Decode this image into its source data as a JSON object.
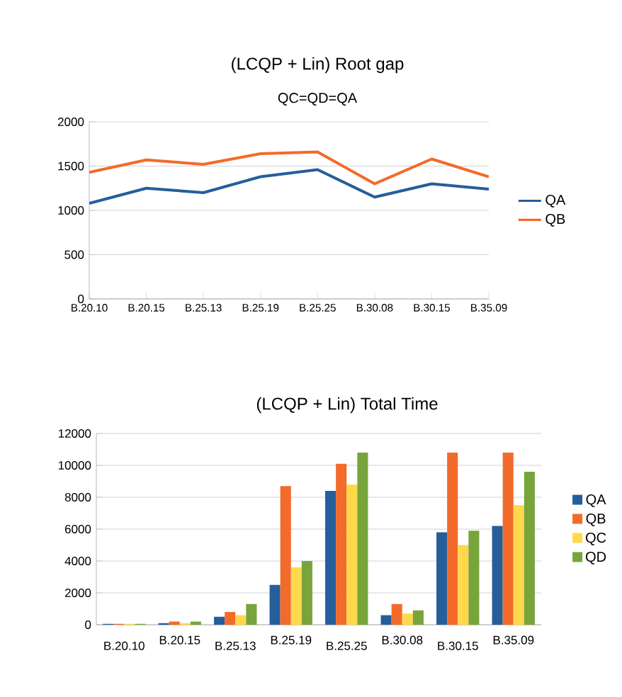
{
  "chart_data": [
    {
      "type": "line",
      "title": "(LCQP + Lin) Root gap",
      "subtitle": "QC=QD=QA",
      "categories": [
        "B.20.10",
        "B.20.15",
        "B.25.13",
        "B.25.19",
        "B.25.25",
        "B.30.08",
        "B.30.15",
        "B.35.09"
      ],
      "series": [
        {
          "name": "QA",
          "color": "#255e9b",
          "values": [
            1080,
            1250,
            1200,
            1380,
            1460,
            1150,
            1300,
            1240
          ]
        },
        {
          "name": "QB",
          "color": "#f26b2a",
          "values": [
            1430,
            1570,
            1520,
            1640,
            1660,
            1300,
            1580,
            1380
          ]
        }
      ],
      "ylim": [
        0,
        2000
      ],
      "yticks": [
        0,
        500,
        1000,
        1500,
        2000
      ],
      "grid": "y",
      "legend": "right"
    },
    {
      "type": "bar",
      "title": "(LCQP + Lin) Total Time",
      "categories": [
        "B.20.10",
        "B.20.15",
        "B.25.13",
        "B.25.19",
        "B.25.25",
        "B.30.08",
        "B.30.15",
        "B.35.09"
      ],
      "series": [
        {
          "name": "QA",
          "color": "#255e9b",
          "values": [
            50,
            100,
            500,
            2500,
            8400,
            600,
            5800,
            6200
          ]
        },
        {
          "name": "QB",
          "color": "#f26b2a",
          "values": [
            50,
            200,
            800,
            8700,
            10100,
            1300,
            10800,
            10800
          ]
        },
        {
          "name": "QC",
          "color": "#ffd84c",
          "values": [
            50,
            100,
            600,
            3600,
            8800,
            700,
            5000,
            7500
          ]
        },
        {
          "name": "QD",
          "color": "#77a53b",
          "values": [
            50,
            200,
            1300,
            4000,
            10800,
            900,
            5900,
            9600
          ]
        }
      ],
      "ylim": [
        0,
        12000
      ],
      "yticks": [
        0,
        2000,
        4000,
        6000,
        8000,
        10000,
        12000
      ],
      "grid": "y",
      "legend": "right"
    }
  ]
}
